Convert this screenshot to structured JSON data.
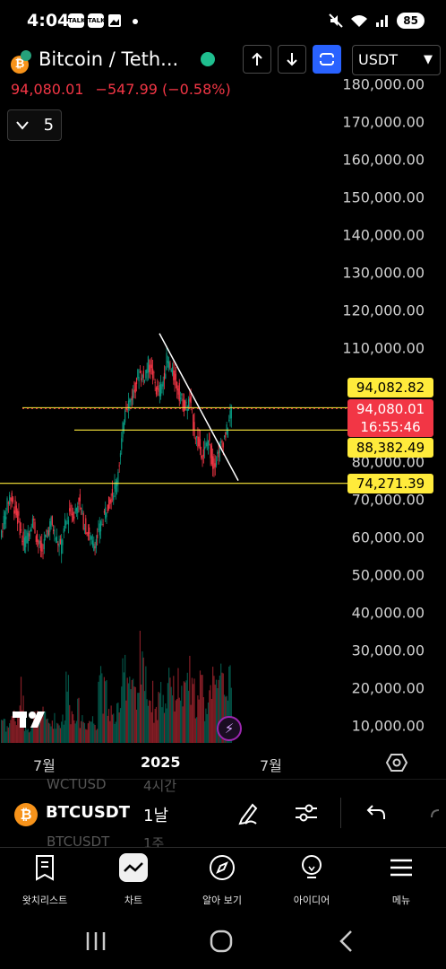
{
  "status_bar": {
    "time": "4:04",
    "talk_badge": "TALK",
    "battery": "85"
  },
  "header": {
    "title": "Bitcoin / Teth...",
    "currency": "USDT",
    "price": "94,080.01",
    "change": "−547.99 (−0.58%)",
    "interval_count": "5"
  },
  "chart": {
    "y_axis_labels": [
      "180,000.00",
      "170,000.00",
      "160,000.00",
      "150,000.00",
      "140,000.00",
      "130,000.00",
      "120,000.00",
      "110,000.00",
      "80,000.00",
      "70,000.00",
      "60,000.00",
      "50,000.00",
      "40,000.00",
      "30,000.00",
      "20,000.00",
      "10,000.00"
    ],
    "x_axis_labels": [
      "7월",
      "2025",
      "7월"
    ],
    "tags": {
      "high_line": "94,082.82",
      "last_price": "94,080.01",
      "countdown": "16:55:46",
      "mid_line": "88,382.49",
      "low_line": "74,271.39"
    },
    "colors": {
      "up": "#089981",
      "down": "#f23645",
      "line": "#ffeb3b",
      "accent": "#2962ff"
    }
  },
  "chart_data": {
    "type": "candlestick",
    "y_axis": {
      "min": 0,
      "max": 180000,
      "step": 10000
    },
    "x_ticks": [
      "7월",
      "2025",
      "7월"
    ],
    "horizontal_lines": [
      94082.82,
      88382.49,
      74271.39
    ],
    "last_price": 94080.01,
    "trendline": {
      "from": 114000,
      "to": 75000
    },
    "close_path": [
      60000,
      66000,
      71000,
      68000,
      64000,
      58000,
      61000,
      65000,
      59000,
      56000,
      61000,
      64000,
      60000,
      57000,
      63000,
      67000,
      66000,
      70000,
      64000,
      61000,
      58000,
      60000,
      64000,
      68000,
      71000,
      74000,
      82000,
      95000,
      96000,
      99000,
      104000,
      102000,
      106000,
      103000,
      98000,
      100000,
      107000,
      104000,
      101000,
      97000,
      94000,
      96000,
      88000,
      84000,
      82000,
      86000,
      79000,
      82000,
      85000,
      88000,
      94000
    ],
    "volume_path": [
      0.12,
      0.15,
      0.1,
      0.18,
      0.14,
      0.3,
      0.12,
      0.1,
      0.15,
      0.13,
      0.2,
      0.11,
      0.14,
      0.12,
      0.16,
      0.35,
      0.18,
      0.2,
      0.15,
      0.12,
      0.14,
      0.13,
      0.45,
      0.3,
      0.2,
      0.15,
      0.18,
      0.55,
      0.4,
      0.3,
      0.25,
      0.6,
      0.35,
      0.28,
      0.2,
      0.3,
      0.25,
      0.45,
      0.3,
      0.35,
      0.28,
      0.4,
      0.3,
      0.25,
      0.35,
      0.2,
      0.45,
      0.3,
      0.55,
      0.4,
      0.35
    ]
  },
  "toolbar": {
    "ghost_top_symbol": "WCTUSD",
    "ghost_top_interval": "4시간",
    "symbol": "BTCUSDT",
    "interval": "1날",
    "ghost_bottom_symbol": "BTCUSDT",
    "ghost_bottom_interval": "1주"
  },
  "nav": {
    "watchlist": "왓치리스트",
    "chart": "차트",
    "explore": "알아 보기",
    "ideas": "아이디어",
    "menu": "메뉴"
  }
}
